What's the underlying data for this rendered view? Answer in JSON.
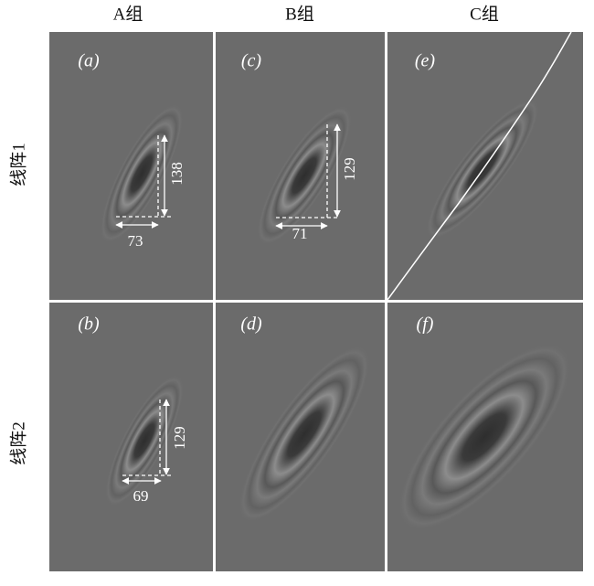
{
  "columns": [
    "A组",
    "B组",
    "C组"
  ],
  "rows": [
    "线阵1",
    "线阵2"
  ],
  "panels": [
    {
      "label": "(a)",
      "width": 73,
      "height": 138
    },
    {
      "label": "(b)",
      "width": 69,
      "height": 129
    },
    {
      "label": "(c)",
      "width": 71,
      "height": 129
    },
    {
      "label": "(d)"
    },
    {
      "label": "(e)"
    },
    {
      "label": "(f)"
    }
  ]
}
